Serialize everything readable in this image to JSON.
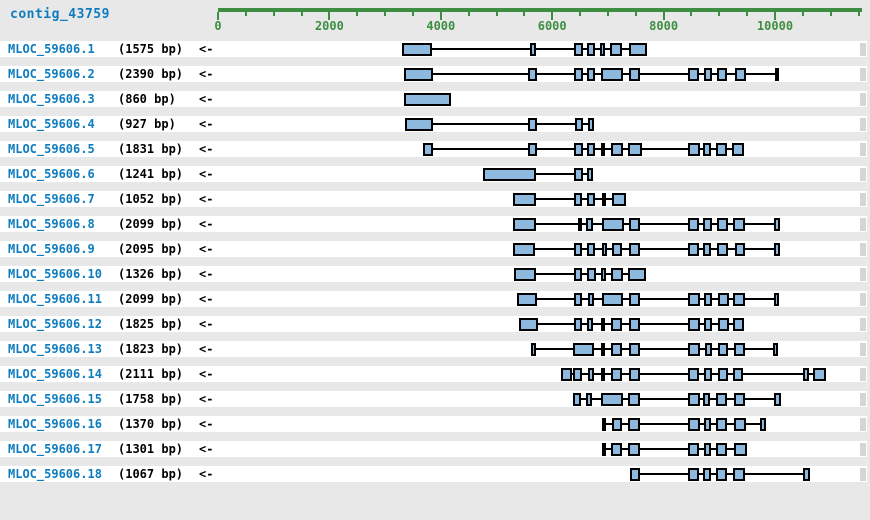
{
  "title": "contig_43759",
  "colors": {
    "background": "#e8e8e8",
    "row_strip": "#ffffff",
    "exon_fill": "#8cb9dd",
    "exon_border": "#000000",
    "intron_line": "#000000",
    "ruler_green": "#3e8e41",
    "name_blue": "#0e7cbe",
    "length_black": "#000000",
    "end_marker_gray": "#d5d5d5"
  },
  "chart_data": {
    "type": "gene-structure-track",
    "contig": "contig_43759",
    "axis": {
      "unit": "bp",
      "min": 0,
      "max": 11560,
      "minor_tick": 500,
      "last_tick": 11500,
      "major_tick": 2000,
      "tick_labels": [
        "0",
        "2000",
        "4000",
        "6000",
        "8000",
        "10000"
      ]
    },
    "transcripts": [
      {
        "name": "MLOC_59606.1",
        "length_label": "(1575 bp)",
        "strand_label": "<-",
        "exons": [
          [
            3300,
            3840
          ],
          [
            5610,
            5710
          ],
          [
            6390,
            6560
          ],
          [
            6630,
            6770
          ],
          [
            6860,
            6950
          ],
          [
            7040,
            7250
          ],
          [
            7370,
            7710
          ]
        ]
      },
      {
        "name": "MLOC_59606.2",
        "length_label": "(2390 bp)",
        "strand_label": "<-",
        "exons": [
          [
            3340,
            3855
          ],
          [
            5570,
            5720
          ],
          [
            6390,
            6550
          ],
          [
            6630,
            6775
          ],
          [
            6870,
            7280
          ],
          [
            7370,
            7575
          ],
          [
            8445,
            8640
          ],
          [
            8725,
            8865
          ],
          [
            8965,
            9145
          ],
          [
            9280,
            9480
          ],
          [
            10000,
            10075
          ]
        ]
      },
      {
        "name": "MLOC_59606.3",
        "length_label": "(860 bp)",
        "strand_label": "<-",
        "exons": [
          [
            3340,
            4175
          ]
        ]
      },
      {
        "name": "MLOC_59606.4",
        "length_label": "(927 bp)",
        "strand_label": "<-",
        "exons": [
          [
            3355,
            3855
          ],
          [
            5570,
            5720
          ],
          [
            6410,
            6560
          ],
          [
            6635,
            6750
          ]
        ]
      },
      {
        "name": "MLOC_59606.5",
        "length_label": "(1831 bp)",
        "strand_label": "<-",
        "exons": [
          [
            3685,
            3855
          ],
          [
            5570,
            5720
          ],
          [
            6390,
            6560
          ],
          [
            6630,
            6770
          ],
          [
            6870,
            6950
          ],
          [
            7050,
            7265
          ],
          [
            7365,
            7605
          ],
          [
            8445,
            8655
          ],
          [
            8710,
            8845
          ],
          [
            8940,
            9145
          ],
          [
            9220,
            9445
          ]
        ]
      },
      {
        "name": "MLOC_59606.6",
        "length_label": "(1241 bp)",
        "strand_label": "<-",
        "exons": [
          [
            4750,
            5705
          ],
          [
            6390,
            6550
          ],
          [
            6620,
            6740
          ]
        ]
      },
      {
        "name": "MLOC_59606.7",
        "length_label": "(1052 bp)",
        "strand_label": "<-",
        "exons": [
          [
            5300,
            5710
          ],
          [
            6390,
            6530
          ],
          [
            6630,
            6770
          ],
          [
            6890,
            6965
          ],
          [
            7070,
            7325
          ]
        ]
      },
      {
        "name": "MLOC_59606.8",
        "length_label": "(2099 bp)",
        "strand_label": "<-",
        "exons": [
          [
            5300,
            5710
          ],
          [
            6470,
            6530
          ],
          [
            6605,
            6740
          ],
          [
            6890,
            7290
          ],
          [
            7385,
            7575
          ],
          [
            8445,
            8640
          ],
          [
            8710,
            8865
          ],
          [
            8965,
            9160
          ],
          [
            9250,
            9460
          ],
          [
            9980,
            10090
          ]
        ]
      },
      {
        "name": "MLOC_59606.9",
        "length_label": "(2095 bp)",
        "strand_label": "<-",
        "exons": [
          [
            5300,
            5690
          ],
          [
            6390,
            6530
          ],
          [
            6630,
            6770
          ],
          [
            6890,
            6980
          ],
          [
            7070,
            7250
          ],
          [
            7385,
            7575
          ],
          [
            8445,
            8640
          ],
          [
            8710,
            8845
          ],
          [
            8965,
            9160
          ],
          [
            9280,
            9460
          ],
          [
            9980,
            10090
          ]
        ]
      },
      {
        "name": "MLOC_59606.10",
        "length_label": "(1326 bp)",
        "strand_label": "<-",
        "exons": [
          [
            5315,
            5710
          ],
          [
            6390,
            6530
          ],
          [
            6620,
            6785
          ],
          [
            6870,
            6965
          ],
          [
            7050,
            7265
          ],
          [
            7365,
            7685
          ]
        ]
      },
      {
        "name": "MLOC_59606.11",
        "length_label": "(2099 bp)",
        "strand_label": "<-",
        "exons": [
          [
            5365,
            5720
          ],
          [
            6395,
            6540
          ],
          [
            6635,
            6755
          ],
          [
            6890,
            7275
          ],
          [
            7380,
            7575
          ],
          [
            8445,
            8655
          ],
          [
            8730,
            8865
          ],
          [
            8970,
            9175
          ],
          [
            9250,
            9460
          ],
          [
            9980,
            10075
          ]
        ]
      },
      {
        "name": "MLOC_59606.12",
        "length_label": "(1825 bp)",
        "strand_label": "<-",
        "exons": [
          [
            5405,
            5740
          ],
          [
            6395,
            6540
          ],
          [
            6620,
            6740
          ],
          [
            6875,
            6935
          ],
          [
            7055,
            7260
          ],
          [
            7380,
            7575
          ],
          [
            8445,
            8655
          ],
          [
            8730,
            8875
          ],
          [
            8970,
            9175
          ],
          [
            9250,
            9445
          ]
        ]
      },
      {
        "name": "MLOC_59606.13",
        "length_label": "(1823 bp)",
        "strand_label": "<-",
        "exons": [
          [
            5620,
            5705
          ],
          [
            6380,
            6755
          ],
          [
            6875,
            6950
          ],
          [
            7055,
            7260
          ],
          [
            7380,
            7575
          ],
          [
            8445,
            8655
          ],
          [
            8745,
            8875
          ],
          [
            8970,
            9160
          ],
          [
            9270,
            9460
          ],
          [
            9970,
            10060
          ]
        ]
      },
      {
        "name": "MLOC_59606.14",
        "length_label": "(2111 bp)",
        "strand_label": "<-",
        "exons": [
          [
            6160,
            6350
          ],
          [
            6380,
            6540
          ],
          [
            6635,
            6755
          ],
          [
            6875,
            6950
          ],
          [
            7055,
            7260
          ],
          [
            7380,
            7575
          ],
          [
            8430,
            8635
          ],
          [
            8730,
            8875
          ],
          [
            8970,
            9150
          ],
          [
            9250,
            9430
          ],
          [
            10510,
            10615
          ],
          [
            10690,
            10915
          ]
        ]
      },
      {
        "name": "MLOC_59606.15",
        "length_label": "(1758 bp)",
        "strand_label": "<-",
        "exons": [
          [
            6370,
            6510
          ],
          [
            6605,
            6710
          ],
          [
            6870,
            7265
          ],
          [
            7365,
            7575
          ],
          [
            8445,
            8655
          ],
          [
            8710,
            8830
          ],
          [
            8940,
            9145
          ],
          [
            9265,
            9460
          ],
          [
            9980,
            10100
          ]
        ]
      },
      {
        "name": "MLOC_59606.16",
        "length_label": "(1370 bp)",
        "strand_label": "<-",
        "exons": [
          [
            6890,
            6965
          ],
          [
            7070,
            7250
          ],
          [
            7365,
            7575
          ],
          [
            8445,
            8655
          ],
          [
            8725,
            8845
          ],
          [
            8940,
            9130
          ],
          [
            9265,
            9480
          ],
          [
            9730,
            9840
          ]
        ]
      },
      {
        "name": "MLOC_59606.17",
        "length_label": "(1301 bp)",
        "strand_label": "<-",
        "exons": [
          [
            6890,
            6965
          ],
          [
            7050,
            7250
          ],
          [
            7365,
            7575
          ],
          [
            8445,
            8640
          ],
          [
            8725,
            8845
          ],
          [
            8940,
            9145
          ],
          [
            9265,
            9505
          ]
        ]
      },
      {
        "name": "MLOC_59606.18",
        "length_label": "(1067 bp)",
        "strand_label": "<-",
        "exons": [
          [
            7395,
            7575
          ],
          [
            8445,
            8640
          ],
          [
            8710,
            8845
          ],
          [
            8940,
            9130
          ],
          [
            9250,
            9460
          ],
          [
            10500,
            10630
          ]
        ]
      }
    ]
  }
}
